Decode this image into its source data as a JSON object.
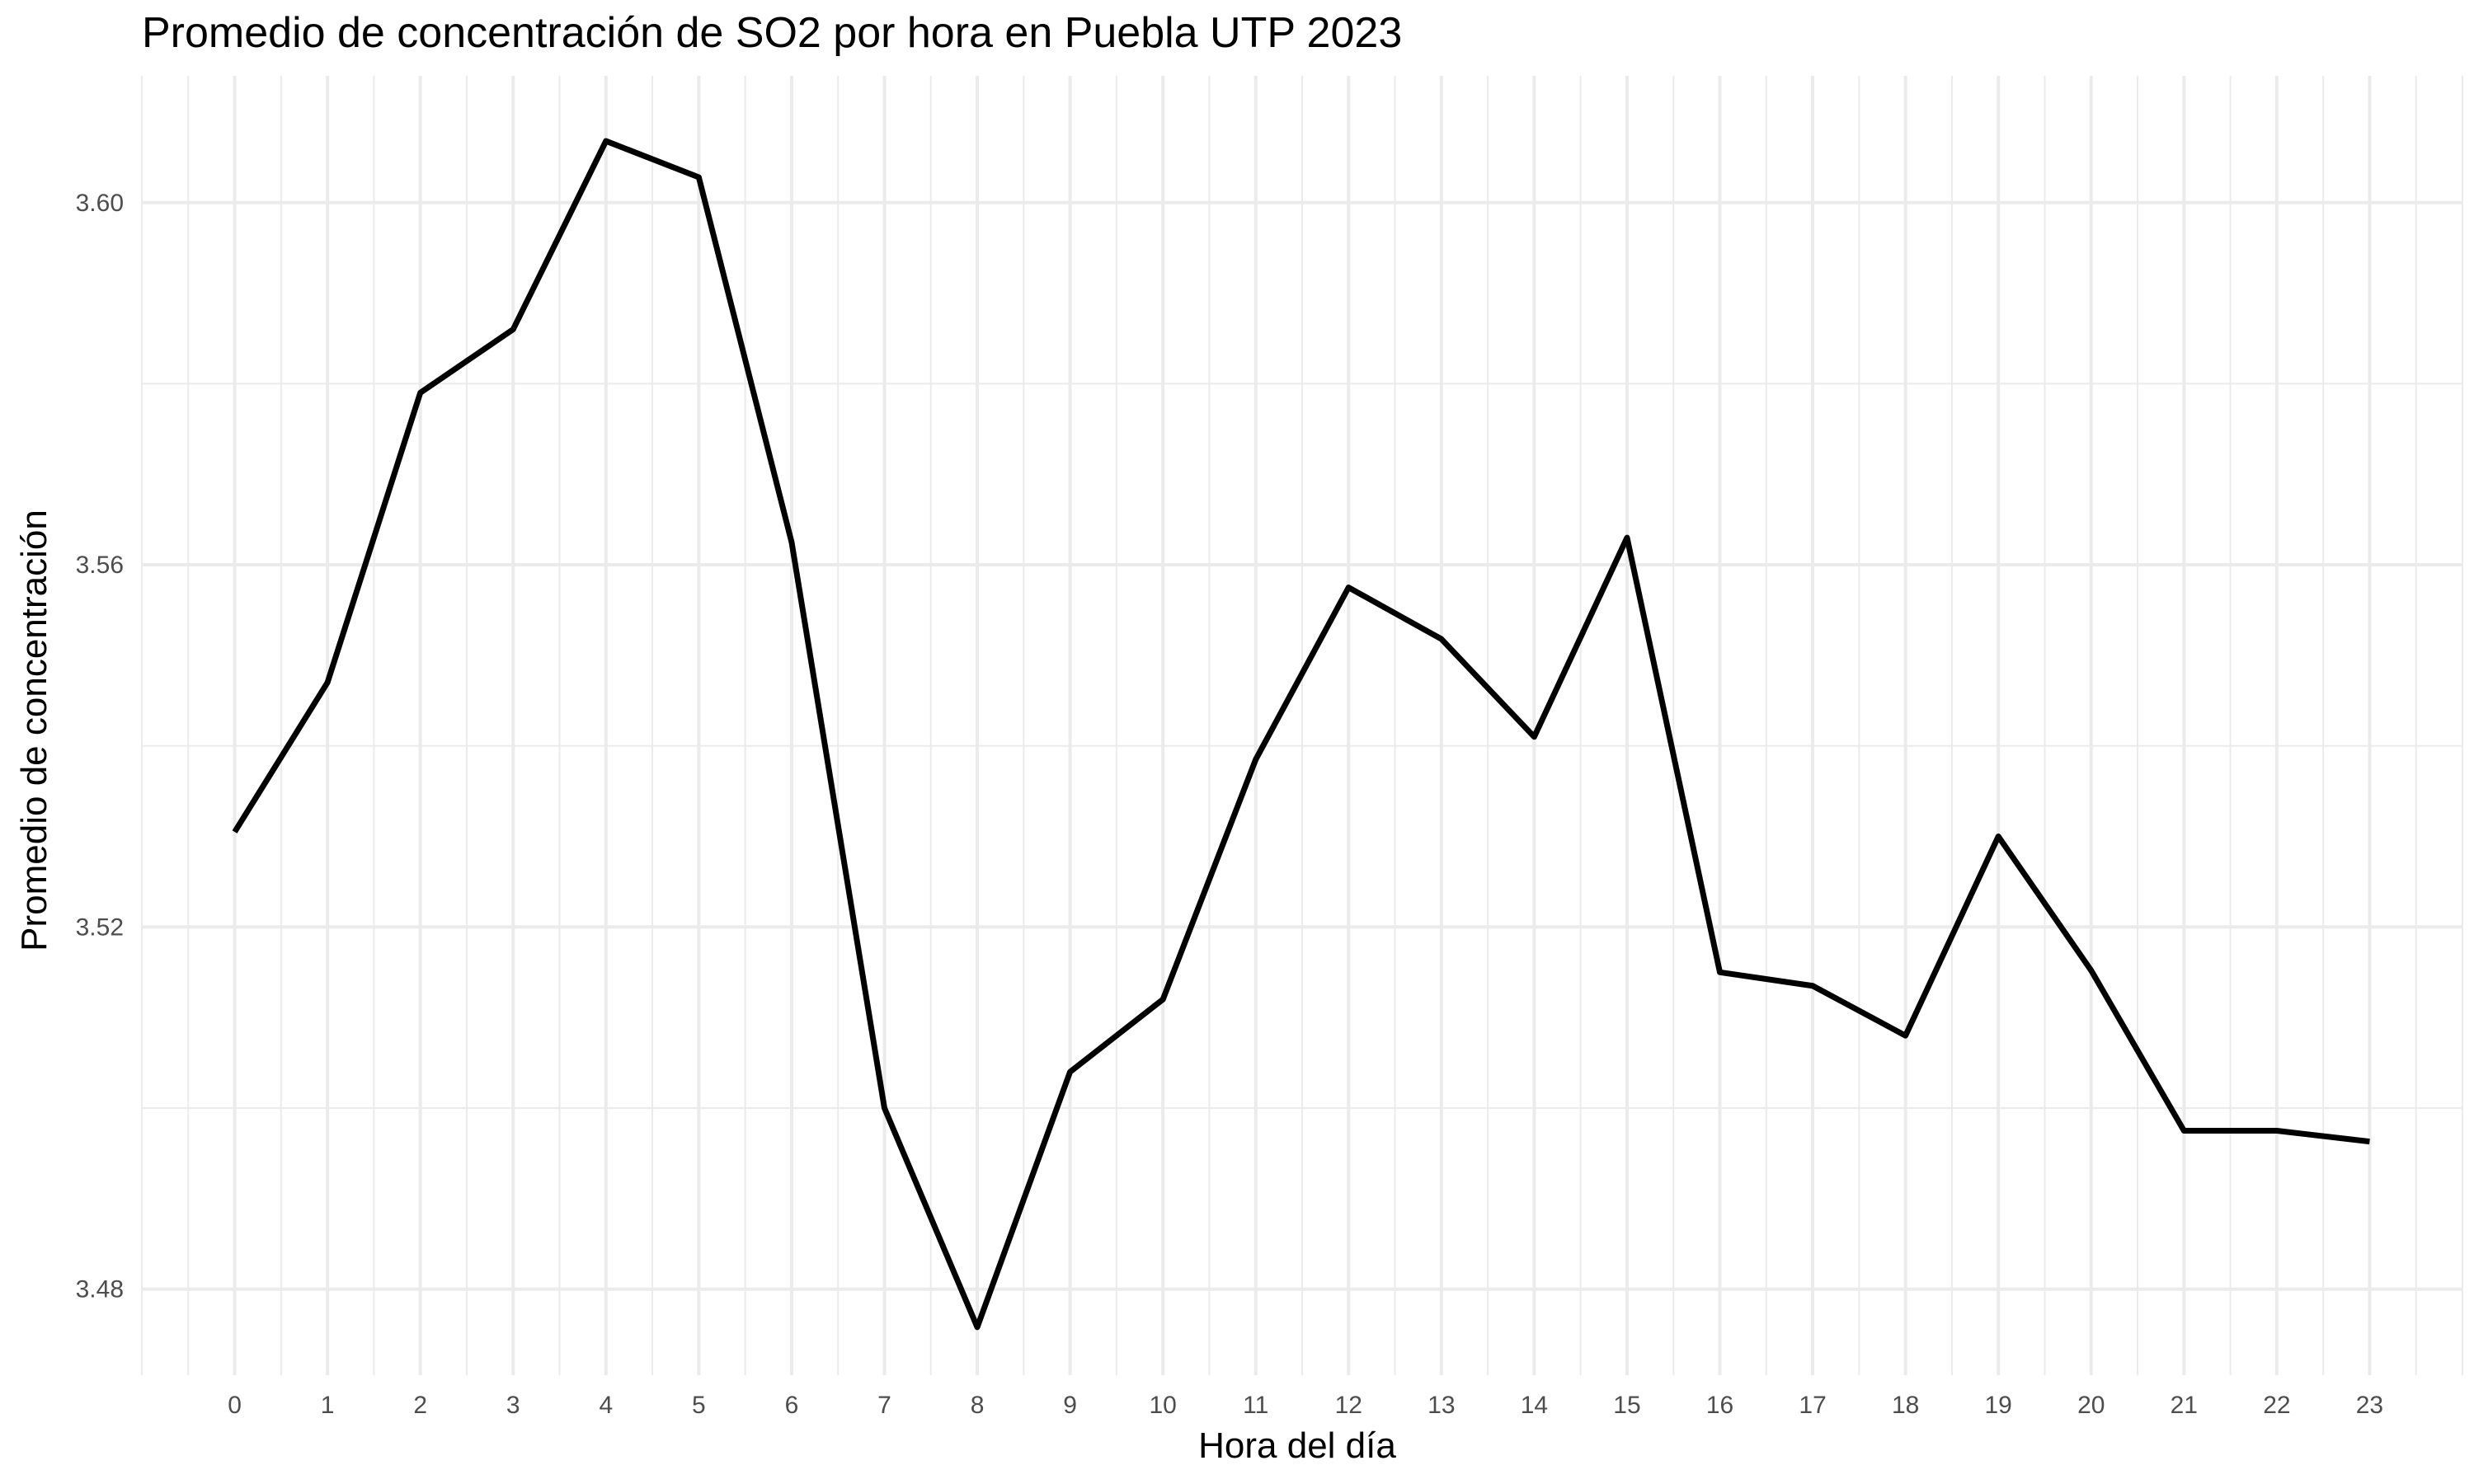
{
  "chart_data": {
    "type": "line",
    "title": "Promedio de concentración de SO2 por hora en Puebla UTP 2023",
    "xlabel": "Hora del día",
    "ylabel": "Promedio de concentración",
    "x": [
      0,
      1,
      2,
      3,
      4,
      5,
      6,
      7,
      8,
      9,
      10,
      11,
      12,
      13,
      14,
      15,
      16,
      17,
      18,
      19,
      20,
      21,
      22,
      23
    ],
    "y": [
      3.5305,
      3.547,
      3.579,
      3.586,
      3.6068,
      3.6028,
      3.5625,
      3.5,
      3.4758,
      3.504,
      3.512,
      3.5385,
      3.5575,
      3.5518,
      3.541,
      3.563,
      3.515,
      3.5135,
      3.508,
      3.53,
      3.5152,
      3.4975,
      3.4975,
      3.4963
    ],
    "xlim": [
      -1,
      24
    ],
    "ylim": [
      3.4705,
      3.614
    ],
    "yticks": [
      3.48,
      3.52,
      3.56,
      3.6
    ],
    "ytick_labels": [
      "3.48",
      "3.52",
      "3.56",
      "3.60"
    ],
    "xtick_labels": [
      "0",
      "1",
      "2",
      "3",
      "4",
      "5",
      "6",
      "7",
      "8",
      "9",
      "10",
      "11",
      "12",
      "13",
      "14",
      "15",
      "16",
      "17",
      "18",
      "19",
      "20",
      "21",
      "22",
      "23"
    ],
    "line_color": "#000000",
    "grid": true,
    "grid_color": "#ebebeb",
    "legend": "none"
  }
}
